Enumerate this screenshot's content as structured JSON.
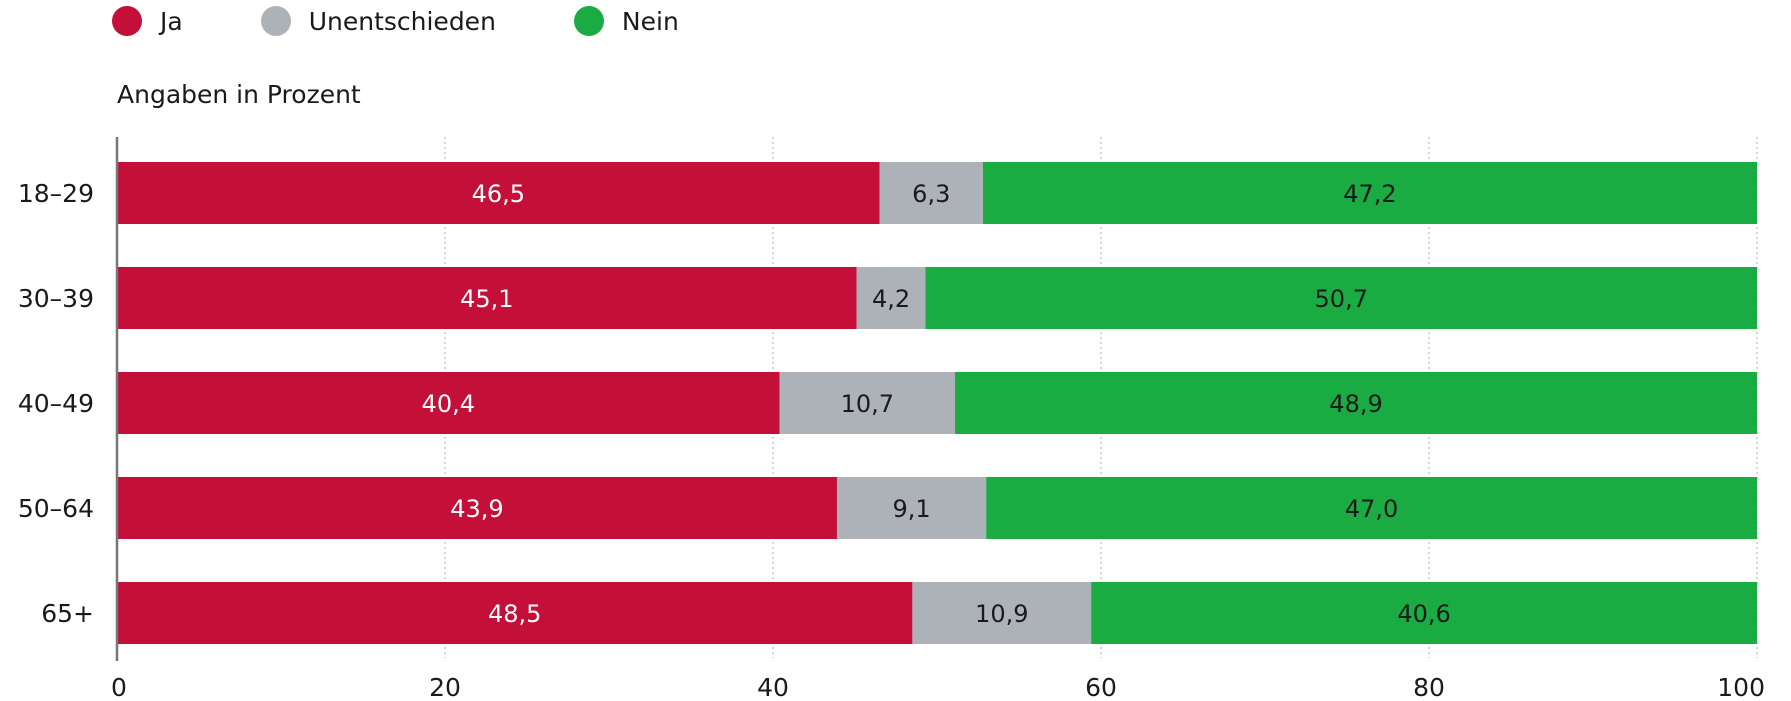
{
  "colors": {
    "ja": "#c40f38",
    "unentschieden": "#adb2b8",
    "nein": "#1aab43",
    "grid": "#bbbbbb",
    "axis": "#777777"
  },
  "legend": [
    {
      "key": "ja",
      "label": "Ja"
    },
    {
      "key": "unentschieden",
      "label": "Unentschieden"
    },
    {
      "key": "nein",
      "label": "Nein"
    }
  ],
  "subtitle": "Angaben in Prozent",
  "chart_data": {
    "type": "bar",
    "orientation": "horizontal",
    "stacked": true,
    "categories": [
      "18–29",
      "30–39",
      "40–49",
      "50–64",
      "65+"
    ],
    "series": [
      {
        "name": "Ja",
        "values": [
          46.5,
          45.1,
          40.4,
          43.9,
          48.5
        ],
        "labels": [
          "46,5",
          "45,1",
          "40,4",
          "43,9",
          "48,5"
        ]
      },
      {
        "name": "Unentschieden",
        "values": [
          6.3,
          4.2,
          10.7,
          9.1,
          10.9
        ],
        "labels": [
          "6,3",
          "4,2",
          "10,7",
          "9,1",
          "10,9"
        ]
      },
      {
        "name": "Nein",
        "values": [
          47.2,
          50.7,
          48.9,
          47.0,
          40.6
        ],
        "labels": [
          "47,2",
          "50,7",
          "48,9",
          "47,0",
          "40,6"
        ]
      }
    ],
    "xlim": [
      0,
      100
    ],
    "xticks": [
      0,
      20,
      40,
      60,
      80,
      100
    ],
    "grid": true,
    "legend_position": "top-left"
  }
}
